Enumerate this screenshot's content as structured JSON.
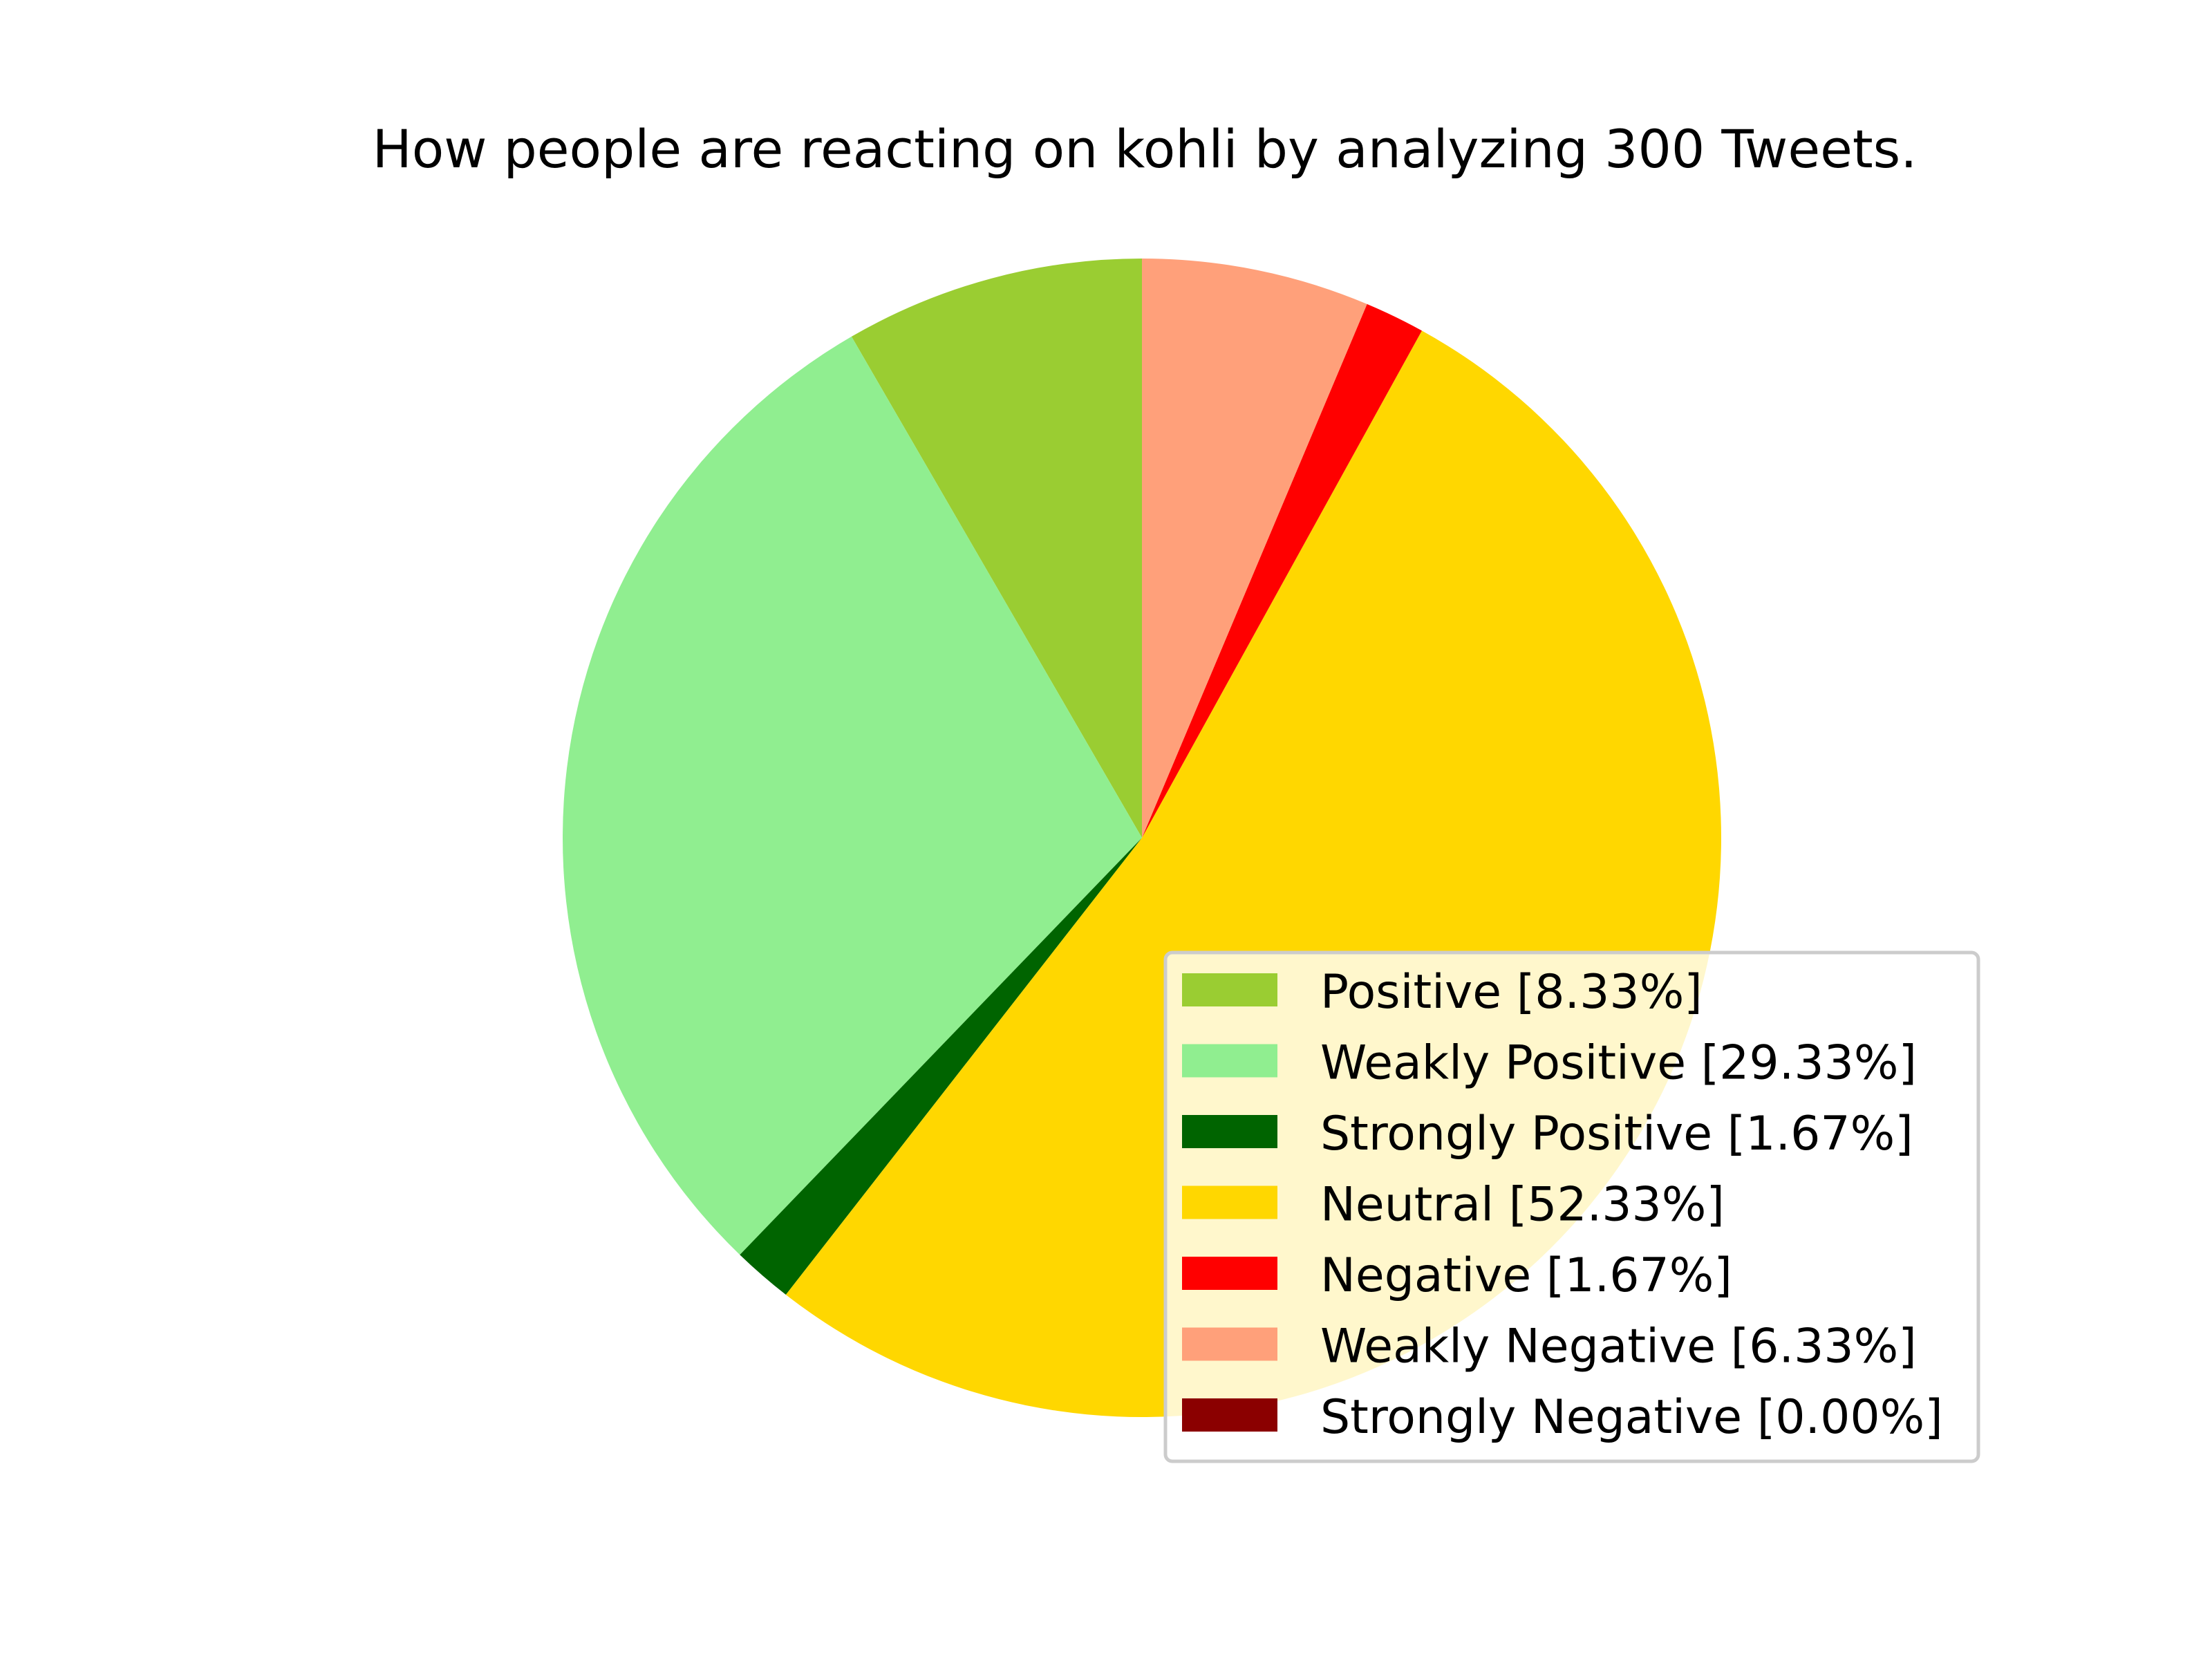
{
  "chart_data": {
    "type": "pie",
    "title": "How people are reacting on kohli by analyzing 300 Tweets.",
    "start_angle_deg": 90,
    "direction": "counterclockwise",
    "legend_position": "lower-right",
    "slices": [
      {
        "label": "Positive [8.33%]",
        "value": 8.33,
        "color": "#9ACD32"
      },
      {
        "label": "Weakly Positive [29.33%]",
        "value": 29.33,
        "color": "#90EE90"
      },
      {
        "label": "Strongly Positive [1.67%]",
        "value": 1.67,
        "color": "#006400"
      },
      {
        "label": "Neutral [52.33%]",
        "value": 52.33,
        "color": "#FFD700"
      },
      {
        "label": "Negative [1.67%]",
        "value": 1.67,
        "color": "#FF0000"
      },
      {
        "label": "Weakly Negative [6.33%]",
        "value": 6.33,
        "color": "#FFA07A"
      },
      {
        "label": "Strongly Negative [0.00%]",
        "value": 0.0,
        "color": "#8B0000"
      }
    ]
  }
}
